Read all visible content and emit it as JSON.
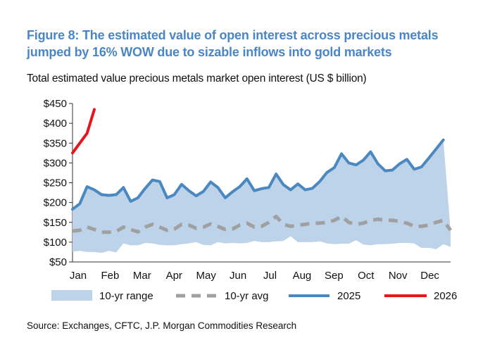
{
  "title": "Figure 8: The estimated value of open interest across precious metals jumped by 16% WOW due to sizable inflows into gold markets",
  "subtitle": "Total estimated value precious metals market open interest (US $ billion)",
  "source": "Source: Exchanges, CFTC, J.P. Morgan Commodities Research",
  "colors": {
    "range": "#bdd3ea",
    "avg": "#a0a0a0",
    "y2025": "#4a88bf",
    "y2026": "#e8141c"
  },
  "chart_data": {
    "type": "area",
    "ylim": [
      50,
      450
    ],
    "yticks": [
      50,
      100,
      150,
      200,
      250,
      300,
      350,
      400,
      450
    ],
    "ytick_labels": [
      "$50",
      "$100",
      "$150",
      "$200",
      "$250",
      "$300",
      "$350",
      "$400",
      "$450"
    ],
    "xtick_labels": [
      "Jan",
      "Feb",
      "Mar",
      "Apr",
      "May",
      "Jun",
      "Jul",
      "Aug",
      "Sep",
      "Oct",
      "Nov",
      "Dec"
    ],
    "weeks": 53,
    "legend": [
      "10-yr range",
      "10-yr avg",
      "2025",
      "2026"
    ],
    "series": [
      {
        "name": "10-yr range low",
        "values": [
          76,
          78,
          75,
          75,
          73,
          78,
          74,
          97,
          92,
          92,
          98,
          97,
          93,
          92,
          92,
          95,
          97,
          100,
          93,
          92,
          100,
          97,
          98,
          97,
          98,
          103,
          100,
          100,
          102,
          103,
          115,
          100,
          100,
          100,
          102,
          97,
          95,
          96,
          96,
          105,
          94,
          92,
          95,
          95,
          96,
          98,
          98,
          97,
          85,
          86,
          82,
          95,
          88
        ]
      },
      {
        "name": "10-yr range high",
        "values": [
          183,
          197,
          240,
          232,
          220,
          218,
          220,
          238,
          203,
          212,
          236,
          257,
          253,
          212,
          220,
          246,
          230,
          217,
          228,
          252,
          238,
          212,
          227,
          240,
          260,
          230,
          235,
          238,
          272,
          245,
          232,
          247,
          232,
          236,
          253,
          276,
          288,
          323,
          300,
          295,
          307,
          328,
          298,
          280,
          282,
          298,
          309,
          284,
          290,
          312,
          335,
          358,
          128
        ]
      },
      {
        "name": "10-yr avg",
        "values": [
          128,
          130,
          138,
          132,
          125,
          125,
          127,
          138,
          132,
          126,
          138,
          145,
          138,
          130,
          133,
          145,
          143,
          135,
          138,
          146,
          140,
          132,
          133,
          143,
          148,
          138,
          140,
          150,
          165,
          145,
          140,
          143,
          145,
          148,
          148,
          150,
          155,
          165,
          150,
          145,
          148,
          155,
          158,
          155,
          155,
          152,
          148,
          140,
          140,
          143,
          150,
          155,
          130
        ]
      },
      {
        "name": "2025",
        "values": [
          183,
          197,
          240,
          232,
          220,
          218,
          220,
          238,
          203,
          212,
          236,
          257,
          253,
          212,
          220,
          246,
          230,
          217,
          228,
          252,
          238,
          212,
          227,
          240,
          260,
          230,
          235,
          238,
          272,
          245,
          232,
          247,
          232,
          236,
          253,
          276,
          288,
          323,
          300,
          295,
          307,
          328,
          298,
          280,
          282,
          298,
          309,
          284,
          290,
          312,
          335,
          358
        ]
      },
      {
        "name": "2026",
        "values": [
          325,
          350,
          375,
          435
        ]
      }
    ]
  }
}
